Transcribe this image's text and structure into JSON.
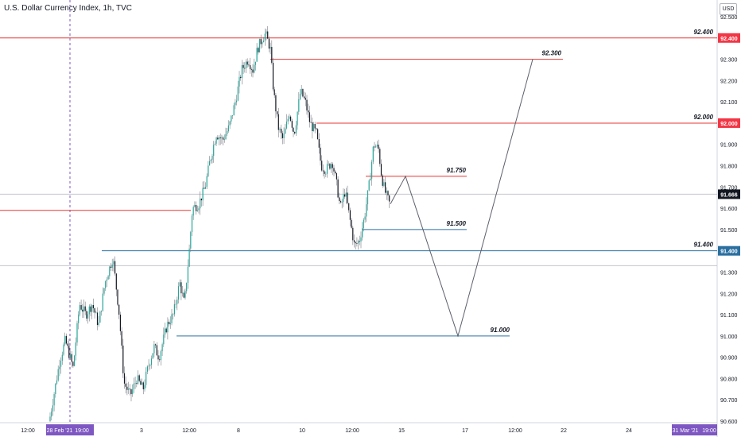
{
  "chart_data": {
    "type": "candlestick",
    "title": "U.S. Dollar Currency Index, 1h, TVC",
    "currency": "USD",
    "y_axis": {
      "ticks": [
        "92.500",
        "92.400",
        "92.300",
        "92.200",
        "92.100",
        "92.000",
        "91.900",
        "91.800",
        "91.700",
        "91.600",
        "91.500",
        "91.400",
        "91.300",
        "91.200",
        "91.100",
        "91.000",
        "90.900",
        "90.800",
        "90.700",
        "90.600"
      ],
      "range": [
        90.58,
        92.58
      ]
    },
    "x_axis": {
      "labels": [
        "12:00",
        "28 Feb '21",
        "19:00",
        "3",
        "12:00",
        "8",
        "10",
        "12:00",
        "15",
        "17",
        "12:00",
        "22",
        "24",
        "31 Mar '21",
        "19:00"
      ]
    },
    "current_price": "91.666",
    "price_badges": [
      {
        "text": "92.400",
        "color": "#f23645"
      },
      {
        "text": "92.000",
        "color": "#f23645"
      },
      {
        "text": "91.666",
        "color": "#131722"
      },
      {
        "text": "91.400",
        "color": "#2a6fa0"
      }
    ],
    "levels": [
      {
        "value": 92.4,
        "label": "92.400",
        "color": "#e53935"
      },
      {
        "value": 92.3,
        "label": "92.300",
        "color": "#e53935"
      },
      {
        "value": 92.0,
        "label": "92.000",
        "color": "#e53935"
      },
      {
        "value": 91.75,
        "label": "91.750",
        "color": "#e53935"
      },
      {
        "value": 91.59,
        "label": "",
        "color": "#e53935"
      },
      {
        "value": 91.5,
        "label": "91.500",
        "color": "#2a6fa0"
      },
      {
        "value": 91.4,
        "label": "91.400",
        "color": "#2a6fa0"
      },
      {
        "value": 91.0,
        "label": "91.000",
        "color": "#2a6fa0"
      }
    ],
    "projection_path": [
      91.62,
      91.75,
      91.0,
      92.3
    ],
    "colors": {
      "up": "#26a69a",
      "down": "#131722",
      "wick": "#7a7d85",
      "highlight": "#7e57c2"
    }
  }
}
